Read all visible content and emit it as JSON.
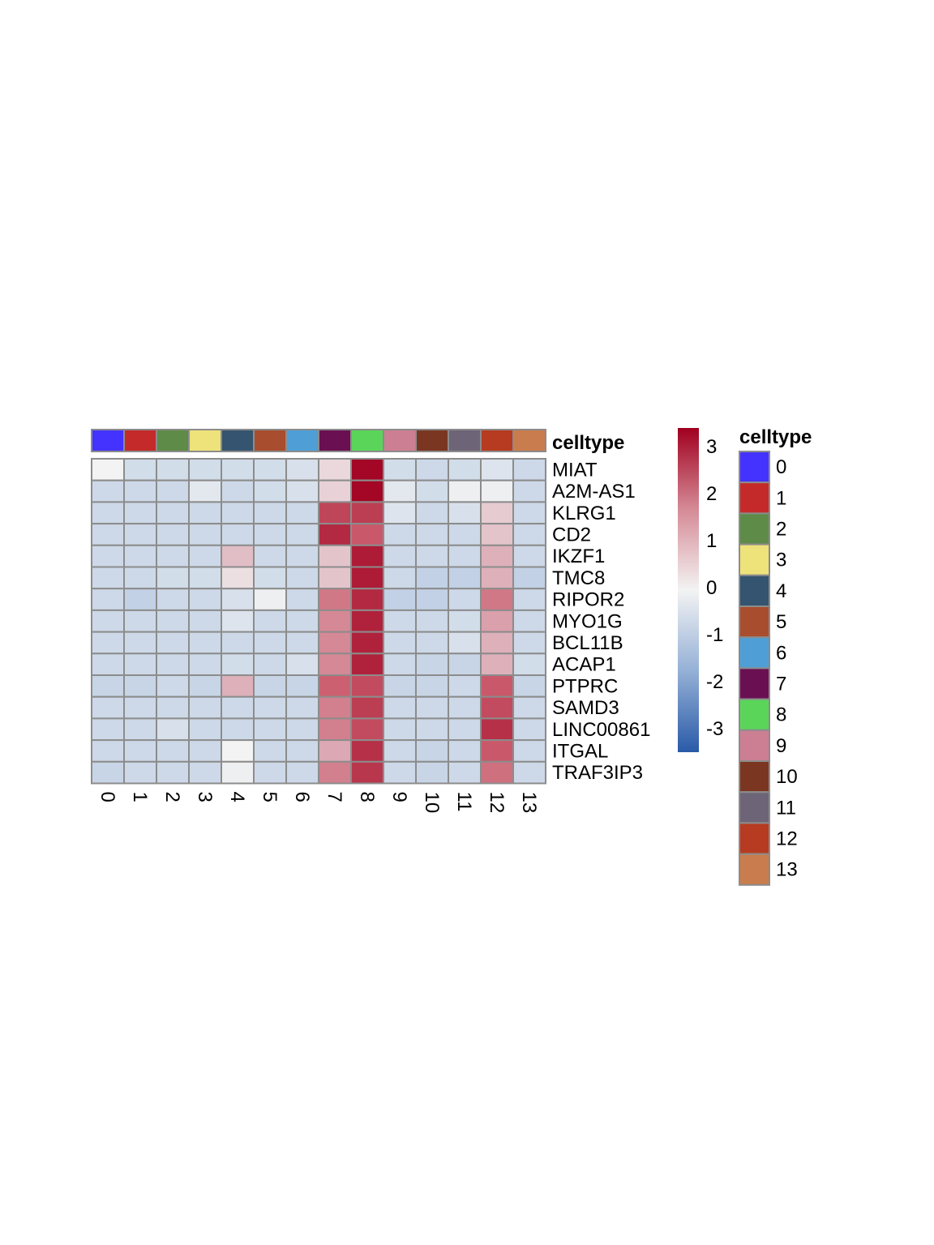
{
  "chart_data": {
    "type": "heatmap",
    "columns": [
      "0",
      "1",
      "2",
      "3",
      "4",
      "5",
      "6",
      "7",
      "8",
      "9",
      "10",
      "11",
      "12",
      "13"
    ],
    "rows": [
      "MIAT",
      "A2M-AS1",
      "KLRG1",
      "CD2",
      "IKZF1",
      "TMC8",
      "RIPOR2",
      "MYO1G",
      "BCL11B",
      "ACAP1",
      "PTPRC",
      "SAMD3",
      "LINC00861",
      "ITGAL",
      "TRAF3IP3"
    ],
    "values": [
      [
        0.0,
        -0.6,
        -0.6,
        -0.6,
        -0.6,
        -0.6,
        -0.5,
        0.4,
        3.3,
        -0.6,
        -0.7,
        -0.6,
        -0.4,
        -0.7
      ],
      [
        -0.7,
        -0.7,
        -0.7,
        -0.3,
        -0.7,
        -0.6,
        -0.5,
        0.5,
        3.3,
        -0.3,
        -0.6,
        -0.1,
        -0.1,
        -0.7
      ],
      [
        -0.7,
        -0.7,
        -0.7,
        -0.7,
        -0.7,
        -0.7,
        -0.7,
        2.4,
        2.5,
        -0.4,
        -0.7,
        -0.5,
        0.6,
        -0.7
      ],
      [
        -0.7,
        -0.7,
        -0.7,
        -0.7,
        -0.7,
        -0.7,
        -0.7,
        2.8,
        2.1,
        -0.7,
        -0.7,
        -0.7,
        0.7,
        -0.7
      ],
      [
        -0.7,
        -0.7,
        -0.7,
        -0.7,
        0.8,
        -0.7,
        -0.7,
        0.7,
        3.0,
        -0.7,
        -0.7,
        -0.7,
        1.0,
        -0.7
      ],
      [
        -0.7,
        -0.7,
        -0.6,
        -0.6,
        0.3,
        -0.6,
        -0.7,
        0.7,
        3.0,
        -0.7,
        -0.9,
        -0.9,
        1.0,
        -0.9
      ],
      [
        -0.7,
        -0.9,
        -0.7,
        -0.7,
        -0.5,
        -0.1,
        -0.7,
        1.7,
        2.8,
        -0.9,
        -0.9,
        -0.7,
        1.7,
        -0.7
      ],
      [
        -0.7,
        -0.7,
        -0.7,
        -0.7,
        -0.4,
        -0.7,
        -0.7,
        1.5,
        2.9,
        -0.7,
        -0.7,
        -0.6,
        1.2,
        -0.7
      ],
      [
        -0.7,
        -0.7,
        -0.7,
        -0.7,
        -0.7,
        -0.7,
        -0.7,
        1.5,
        2.9,
        -0.7,
        -0.7,
        -0.5,
        1.0,
        -0.7
      ],
      [
        -0.7,
        -0.7,
        -0.7,
        -0.7,
        -0.6,
        -0.7,
        -0.5,
        1.5,
        2.9,
        -0.7,
        -0.8,
        -0.8,
        1.0,
        -0.6
      ],
      [
        -0.8,
        -0.8,
        -0.7,
        -0.8,
        1.0,
        -0.8,
        -0.8,
        2.0,
        2.3,
        -0.8,
        -0.8,
        -0.7,
        2.1,
        -0.8
      ],
      [
        -0.7,
        -0.7,
        -0.7,
        -0.7,
        -0.7,
        -0.7,
        -0.7,
        1.6,
        2.5,
        -0.7,
        -0.7,
        -0.7,
        2.3,
        -0.7
      ],
      [
        -0.7,
        -0.7,
        -0.5,
        -0.7,
        -0.7,
        -0.7,
        -0.7,
        1.6,
        2.3,
        -0.7,
        -0.7,
        -0.7,
        2.7,
        -0.7
      ],
      [
        -0.7,
        -0.7,
        -0.7,
        -0.7,
        0.0,
        -0.7,
        -0.7,
        1.1,
        2.7,
        -0.7,
        -0.8,
        -0.7,
        2.1,
        -0.7
      ],
      [
        -0.8,
        -0.7,
        -0.7,
        -0.7,
        -0.1,
        -0.7,
        -0.7,
        1.6,
        2.6,
        -0.7,
        -0.8,
        -0.7,
        1.8,
        -0.7
      ]
    ],
    "annotation_label": "celltype",
    "celltype_colors": [
      "#4433ff",
      "#c42a2a",
      "#5e8b47",
      "#eee27a",
      "#34546f",
      "#a84e2e",
      "#4f9fd6",
      "#6a1052",
      "#5ad55a",
      "#cc7f93",
      "#7a3620",
      "#6e6477",
      "#b63b20",
      "#c97c4d"
    ],
    "colorbar": {
      "min": -3.5,
      "max": 3.4,
      "ticks": [
        3,
        2,
        1,
        0,
        -1,
        -2,
        -3
      ],
      "tick_labels": [
        "3",
        "2",
        "1",
        "0",
        "-1",
        "-2",
        "-3"
      ]
    },
    "legend": {
      "title": "celltype",
      "placement": "right",
      "items": [
        "0",
        "1",
        "2",
        "3",
        "4",
        "5",
        "6",
        "7",
        "8",
        "9",
        "10",
        "11",
        "12",
        "13"
      ]
    }
  }
}
